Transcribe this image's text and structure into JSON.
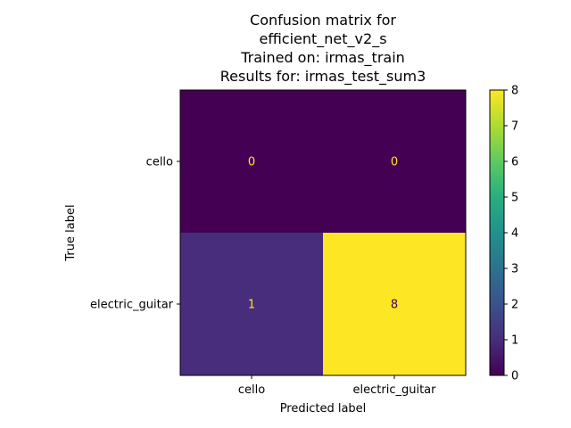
{
  "chart_data": {
    "type": "heatmap",
    "title_lines": [
      "Confusion matrix for",
      "efficient_net_v2_s",
      "Trained on: irmas_train",
      "Results for: irmas_test_sum3"
    ],
    "xlabel": "Predicted label",
    "ylabel": "True label",
    "x_categories": [
      "cello",
      "electric_guitar"
    ],
    "y_categories": [
      "cello",
      "electric_guitar"
    ],
    "matrix": [
      [
        0,
        0
      ],
      [
        1,
        8
      ]
    ],
    "cell_labels": [
      [
        "0",
        "0"
      ],
      [
        "1",
        "8"
      ]
    ],
    "colorbar": {
      "min": 0,
      "max": 8,
      "ticks": [
        "0",
        "1",
        "2",
        "3",
        "4",
        "5",
        "6",
        "7",
        "8"
      ],
      "colormap": "viridis"
    },
    "colors": {
      "low": "#440154",
      "high": "#fde725",
      "text_on_dark": "#fde725",
      "text_on_light": "#440154"
    }
  }
}
